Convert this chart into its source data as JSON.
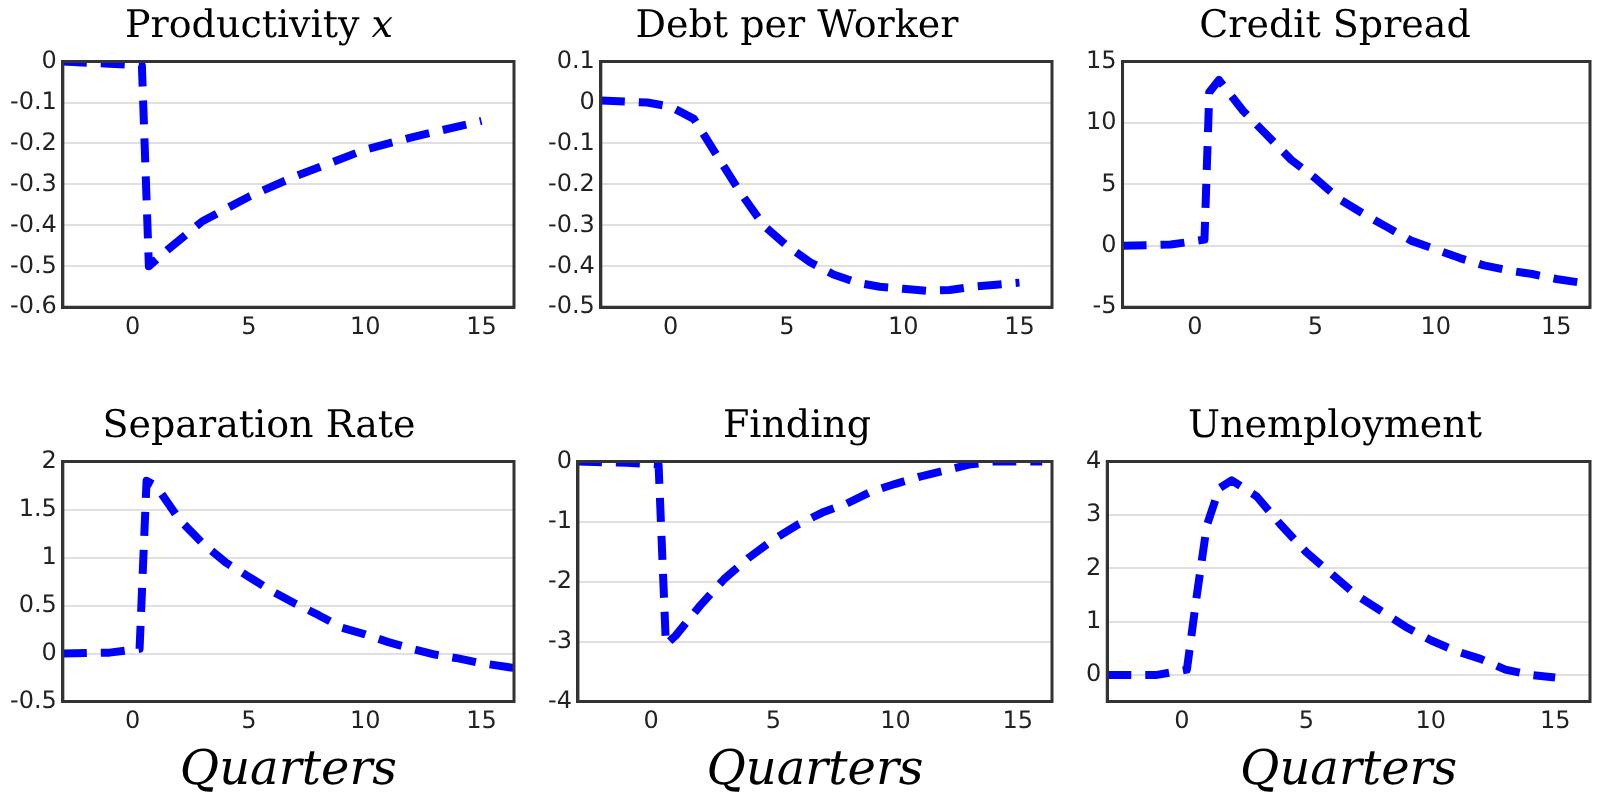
{
  "chart_data": [
    {
      "type": "line",
      "title": "Productivity 𝑥",
      "x": [
        -3,
        -1,
        0.4,
        0.7,
        1.5,
        3,
        5,
        7,
        10,
        12,
        15
      ],
      "values": [
        0,
        -0.005,
        -0.01,
        -0.5,
        -0.46,
        -0.39,
        -0.33,
        -0.28,
        -0.215,
        -0.185,
        -0.145
      ],
      "color": "#0000ff",
      "xlim": [
        -3,
        16.4
      ],
      "xticks": [
        0,
        5,
        10,
        15
      ],
      "ylim": [
        -0.6,
        0
      ],
      "yticks": [
        -0.6,
        -0.5,
        -0.4,
        -0.3,
        -0.2,
        -0.1,
        0
      ],
      "grid": "y",
      "line_style": "dashed",
      "marker": "none"
    },
    {
      "type": "line",
      "title": "Debt per Worker",
      "x": [
        -3,
        -1,
        0,
        1,
        2,
        3,
        4,
        5,
        6,
        7,
        8,
        9,
        10,
        11,
        12,
        13,
        14,
        15
      ],
      "values": [
        0.005,
        0,
        -0.01,
        -0.04,
        -0.13,
        -0.22,
        -0.3,
        -0.35,
        -0.39,
        -0.42,
        -0.44,
        -0.45,
        -0.455,
        -0.46,
        -0.458,
        -0.45,
        -0.445,
        -0.44
      ],
      "color": "#0000ff",
      "xlim": [
        -3,
        16.4
      ],
      "xticks": [
        0,
        5,
        10,
        15
      ],
      "ylim": [
        -0.5,
        0.1
      ],
      "yticks": [
        -0.5,
        -0.4,
        -0.3,
        -0.2,
        -0.1,
        0,
        0.1
      ],
      "grid": "y",
      "line_style": "dashed",
      "marker": "none"
    },
    {
      "type": "line",
      "title": "Credit Spread",
      "x": [
        -3,
        -1,
        0.4,
        0.6,
        1,
        2,
        3,
        4,
        5,
        6,
        7,
        8,
        9,
        10,
        11,
        12,
        13,
        14,
        15,
        16
      ],
      "values": [
        0,
        0.1,
        0.5,
        12.5,
        13.5,
        11,
        9,
        7,
        5.5,
        3.8,
        2.6,
        1.5,
        0.4,
        -0.3,
        -1,
        -1.6,
        -2,
        -2.3,
        -2.7,
        -3
      ],
      "color": "#0000ff",
      "xlim": [
        -3,
        16.4
      ],
      "xticks": [
        0,
        5,
        10,
        15
      ],
      "ylim": [
        -5,
        15
      ],
      "yticks": [
        -5,
        0,
        5,
        10,
        15
      ],
      "grid": "y",
      "line_style": "dashed",
      "marker": "none"
    },
    {
      "type": "line",
      "title": "Separation Rate",
      "xlabel": "Quarters",
      "x": [
        -3,
        -1,
        0.3,
        0.6,
        1,
        2,
        3,
        4,
        5,
        6,
        7,
        8,
        9,
        10,
        11,
        12,
        13,
        14,
        15,
        16.4
      ],
      "values": [
        0,
        0.01,
        0.05,
        1.8,
        1.75,
        1.4,
        1.15,
        0.95,
        0.8,
        0.65,
        0.52,
        0.4,
        0.27,
        0.2,
        0.12,
        0.05,
        -0.01,
        -0.05,
        -0.1,
        -0.15
      ],
      "color": "#0000ff",
      "xlim": [
        -3,
        16.4
      ],
      "xticks": [
        0,
        5,
        10,
        15
      ],
      "ylim": [
        -0.5,
        2
      ],
      "yticks": [
        -0.5,
        0,
        0.5,
        1,
        1.5,
        2
      ],
      "grid": "y",
      "line_style": "dashed",
      "marker": "none"
    },
    {
      "type": "line",
      "title": "Finding",
      "xlabel": "Quarters",
      "x": [
        -3,
        -1,
        0.3,
        0.6,
        1,
        2,
        3,
        4,
        5,
        6,
        7,
        8,
        9,
        10,
        11,
        12,
        13,
        14,
        15,
        16
      ],
      "values": [
        0,
        -0.02,
        -0.05,
        -3.05,
        -2.9,
        -2.4,
        -1.95,
        -1.6,
        -1.3,
        -1.05,
        -0.85,
        -0.7,
        -0.5,
        -0.37,
        -0.25,
        -0.15,
        -0.05,
        0,
        0,
        0
      ],
      "color": "#0000ff",
      "xlim": [
        -3,
        16.4
      ],
      "xticks": [
        0,
        5,
        10,
        15
      ],
      "ylim": [
        -4,
        0
      ],
      "yticks": [
        -4,
        -3,
        -2,
        -1,
        0
      ],
      "grid": "y",
      "line_style": "dashed",
      "marker": "none"
    },
    {
      "type": "line",
      "title": "Unemployment",
      "xlabel": "Quarters",
      "x": [
        -3,
        -1,
        0.2,
        0.6,
        1,
        1.5,
        2,
        3,
        4,
        5,
        6,
        7,
        8,
        9,
        10,
        11,
        12,
        13,
        14,
        15
      ],
      "values": [
        0,
        0,
        0.1,
        1.5,
        2.8,
        3.5,
        3.65,
        3.35,
        2.8,
        2.3,
        1.9,
        1.5,
        1.2,
        0.9,
        0.65,
        0.45,
        0.3,
        0.1,
        0,
        -0.05
      ],
      "color": "#0000ff",
      "xlim": [
        -3,
        16.4
      ],
      "xticks": [
        0,
        5,
        10,
        15
      ],
      "ylim": [
        -0.5,
        4
      ],
      "yticks": [
        0,
        1,
        2,
        3,
        4
      ],
      "grid": "y",
      "line_style": "dashed",
      "marker": "none"
    }
  ]
}
